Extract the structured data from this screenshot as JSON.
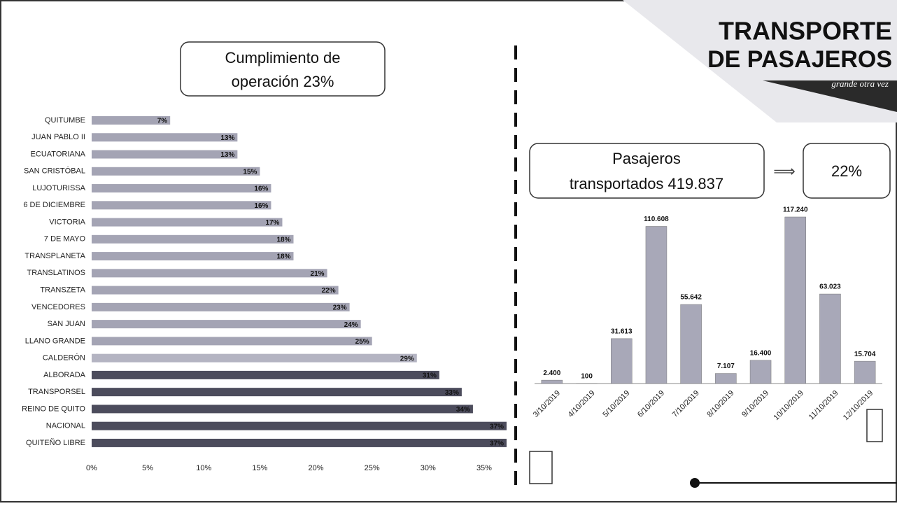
{
  "header": {
    "box_title": "Cumplimiento de operación 23%",
    "logo_line1": "TRANSPORTE",
    "logo_line2": "DE PASAJEROS",
    "logo_tagline": "grande otra vez",
    "passengers_box": "Pasajeros transportados 419.837",
    "arrow": "⟹",
    "percent_box": "22%"
  },
  "chart_data": [
    {
      "type": "hbar",
      "categories": [
        "QUITUMBE",
        "JUAN PABLO II",
        "ECUATORIANA",
        "SAN CRISTÓBAL",
        "LUJOTURISSA",
        "6 DE DICIEMBRE",
        "VICTORIA",
        "7 DE MAYO",
        "TRANSPLANETA",
        "TRANSLATINOS",
        "TRANSZETA",
        "VENCEDORES",
        "SAN JUAN",
        "LLANO GRANDE",
        "CALDERÓN",
        "ALBORADA",
        "TRANSPORSEL",
        "REINO DE QUITO",
        "NACIONAL",
        "QUITEÑO LIBRE"
      ],
      "values": [
        7,
        13,
        13,
        15,
        16,
        16,
        17,
        18,
        18,
        21,
        22,
        23,
        24,
        25,
        29,
        31,
        33,
        34,
        37,
        37
      ],
      "value_labels": [
        "7%",
        "13%",
        "13%",
        "15%",
        "16%",
        "16%",
        "17%",
        "18%",
        "18%",
        "21%",
        "22%",
        "23%",
        "24%",
        "25%",
        "29%",
        "31%",
        "33%",
        "34%",
        "37%",
        "37%"
      ],
      "colors": [
        "#a4a4b4",
        "#a4a4b4",
        "#a4a4b4",
        "#a4a4b4",
        "#a4a4b4",
        "#a4a4b4",
        "#a4a4b4",
        "#a4a4b4",
        "#a4a4b4",
        "#a4a4b4",
        "#a4a4b4",
        "#a4a4b4",
        "#a4a4b4",
        "#a4a4b4",
        "#b4b4c2",
        "#4c4c5c",
        "#4c4c5c",
        "#4c4c5c",
        "#4c4c5c",
        "#4c4c5c"
      ],
      "xlim": [
        0,
        36.5
      ],
      "xticks": [
        {
          "value": 0,
          "label": "0%"
        },
        {
          "value": 5,
          "label": "5%"
        },
        {
          "value": 10,
          "label": "10%"
        },
        {
          "value": 15,
          "label": "15%"
        },
        {
          "value": 20,
          "label": "20%"
        },
        {
          "value": 25,
          "label": "25%"
        },
        {
          "value": 30,
          "label": "30%"
        },
        {
          "value": 35,
          "label": "35%"
        }
      ]
    },
    {
      "type": "bar",
      "categories": [
        "3/10/2019",
        "4/10/2019",
        "5/10/2019",
        "6/10/2019",
        "7/10/2019",
        "8/10/2019",
        "9/10/2019",
        "10/10/2019",
        "11/10/2019",
        "12/10/2019"
      ],
      "values": [
        2400,
        100,
        31613,
        110608,
        55642,
        7107,
        16400,
        117240,
        63023,
        15704
      ],
      "value_labels": [
        "2.400",
        "100",
        "31.613",
        "110.608",
        "55.642",
        "7.107",
        "16.400",
        "117.240",
        "63.023",
        "15.704"
      ],
      "color": "#a8a8b8"
    }
  ]
}
